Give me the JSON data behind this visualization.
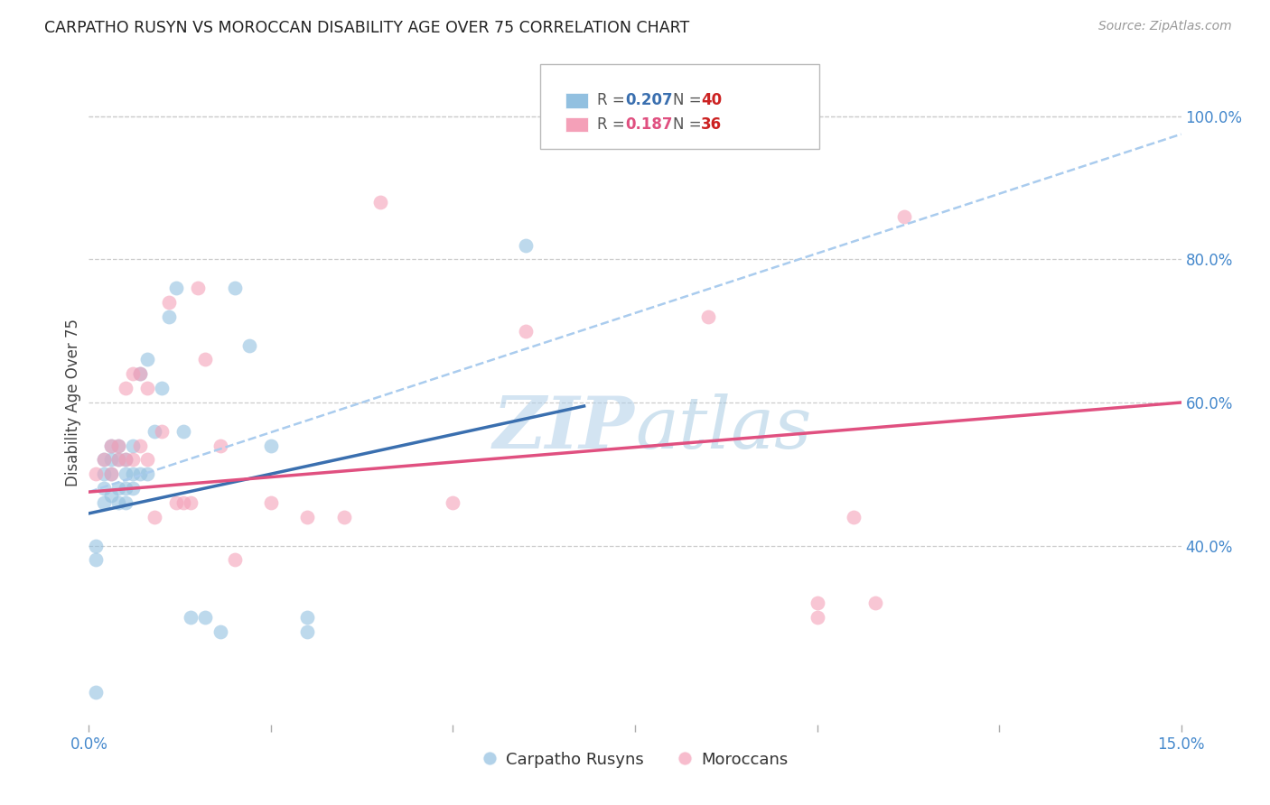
{
  "title": "CARPATHO RUSYN VS MOROCCAN DISABILITY AGE OVER 75 CORRELATION CHART",
  "source": "Source: ZipAtlas.com",
  "ylabel": "Disability Age Over 75",
  "legend_label1": "Carpatho Rusyns",
  "legend_label2": "Moroccans",
  "blue_color": "#92c0e0",
  "pink_color": "#f4a0b8",
  "blue_line_color": "#3a6faf",
  "pink_line_color": "#e05080",
  "dashed_line_color": "#aaccee",
  "blue_scatter_x": [
    0.001,
    0.001,
    0.001,
    0.002,
    0.002,
    0.002,
    0.002,
    0.003,
    0.003,
    0.003,
    0.003,
    0.004,
    0.004,
    0.004,
    0.004,
    0.005,
    0.005,
    0.005,
    0.005,
    0.006,
    0.006,
    0.006,
    0.007,
    0.007,
    0.008,
    0.008,
    0.009,
    0.01,
    0.011,
    0.012,
    0.013,
    0.014,
    0.016,
    0.018,
    0.02,
    0.022,
    0.025,
    0.03,
    0.03,
    0.06
  ],
  "blue_scatter_y": [
    0.195,
    0.38,
    0.4,
    0.46,
    0.48,
    0.5,
    0.52,
    0.47,
    0.5,
    0.52,
    0.54,
    0.46,
    0.48,
    0.52,
    0.54,
    0.46,
    0.48,
    0.5,
    0.52,
    0.48,
    0.5,
    0.54,
    0.5,
    0.64,
    0.5,
    0.66,
    0.56,
    0.62,
    0.72,
    0.76,
    0.56,
    0.3,
    0.3,
    0.28,
    0.76,
    0.68,
    0.54,
    0.3,
    0.28,
    0.82
  ],
  "pink_scatter_x": [
    0.001,
    0.002,
    0.003,
    0.003,
    0.004,
    0.004,
    0.005,
    0.005,
    0.006,
    0.006,
    0.007,
    0.007,
    0.008,
    0.008,
    0.009,
    0.01,
    0.011,
    0.012,
    0.013,
    0.014,
    0.015,
    0.016,
    0.018,
    0.02,
    0.025,
    0.03,
    0.035,
    0.04,
    0.05,
    0.06,
    0.085,
    0.1,
    0.1,
    0.105,
    0.108,
    0.112
  ],
  "pink_scatter_y": [
    0.5,
    0.52,
    0.5,
    0.54,
    0.52,
    0.54,
    0.52,
    0.62,
    0.52,
    0.64,
    0.54,
    0.64,
    0.52,
    0.62,
    0.44,
    0.56,
    0.74,
    0.46,
    0.46,
    0.46,
    0.76,
    0.66,
    0.54,
    0.38,
    0.46,
    0.44,
    0.44,
    0.88,
    0.46,
    0.7,
    0.72,
    0.3,
    0.32,
    0.44,
    0.32,
    0.86
  ],
  "xlim": [
    0.0,
    0.15
  ],
  "ylim": [
    0.15,
    1.05
  ],
  "blue_line_x": [
    0.0,
    0.068
  ],
  "blue_line_y": [
    0.445,
    0.595
  ],
  "pink_line_x": [
    0.0,
    0.15
  ],
  "pink_line_y": [
    0.475,
    0.6
  ],
  "dashed_line_x": [
    0.0,
    0.15
  ],
  "dashed_line_y": [
    0.475,
    0.975
  ],
  "yticks": [
    0.4,
    0.6,
    0.8,
    1.0
  ],
  "ytick_labels": [
    "40.0%",
    "60.0%",
    "80.0%",
    "100.0%"
  ],
  "xticks": [
    0.0,
    0.025,
    0.05,
    0.075,
    0.1,
    0.125,
    0.15
  ],
  "xtick_labels": [
    "0.0%",
    "",
    "",
    "",
    "",
    "",
    "15.0%"
  ]
}
